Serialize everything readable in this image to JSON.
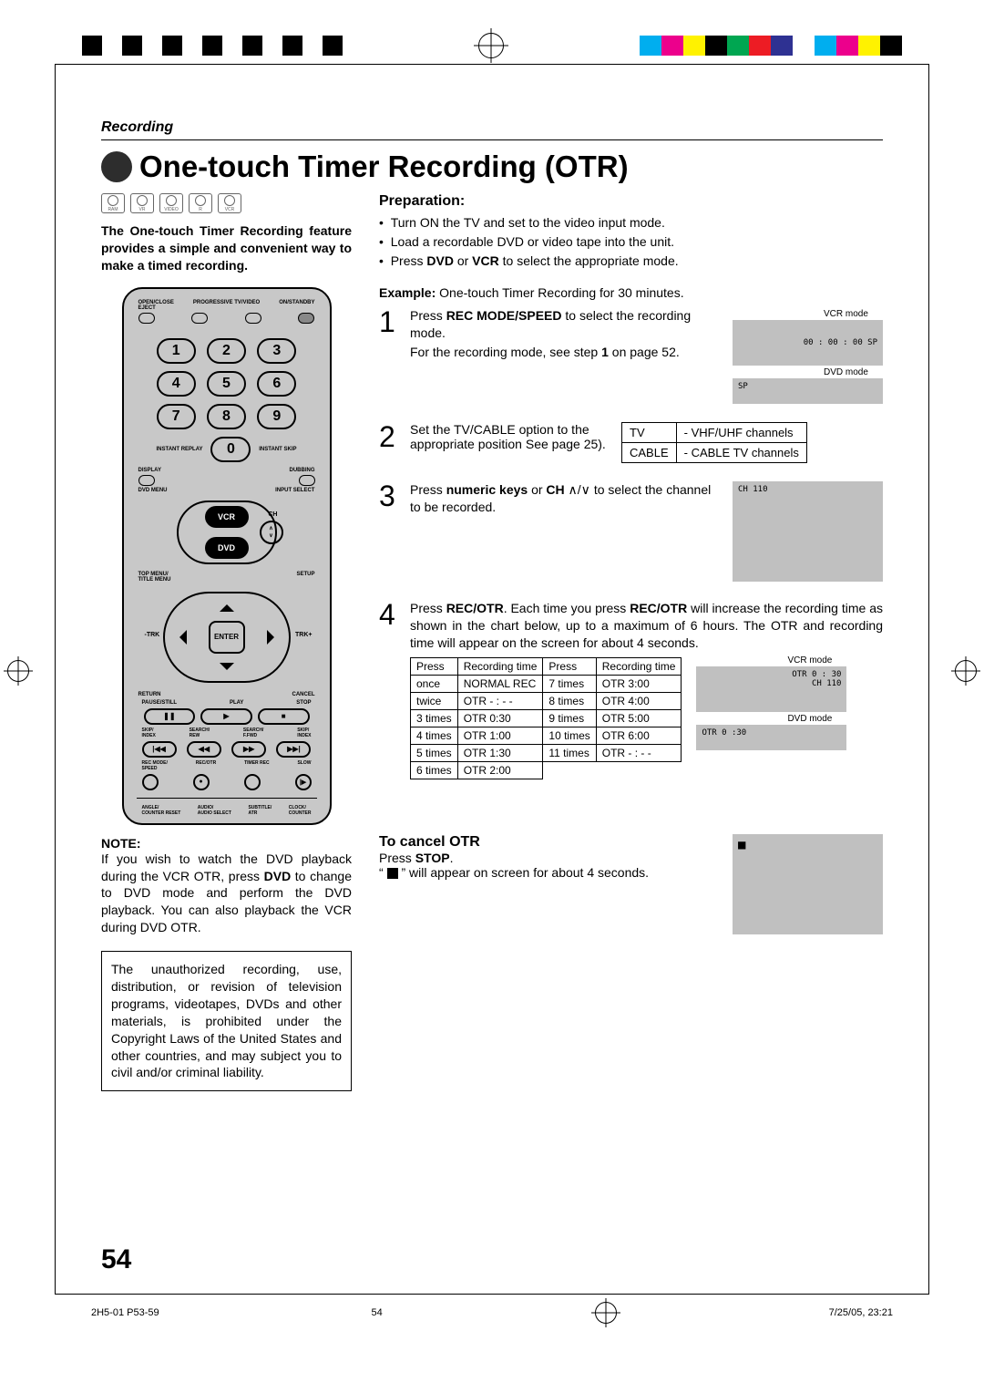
{
  "header": {
    "section_label": "Recording",
    "title": "One-touch Timer Recording (OTR)",
    "disc_icons": [
      "RAM",
      "VR",
      "VIDEO",
      "R",
      "VCR"
    ]
  },
  "intro": "The One-touch Timer Recording feature provides a simple and convenient way to make a timed recording.",
  "remote": {
    "top_left_label": "OPEN/CLOSE\nEJECT",
    "top_mid_label": "PROGRESSIVE TV/VIDEO",
    "top_right_label": "ON/STANDBY",
    "instant_replay": "INSTANT REPLAY",
    "instant_skip": "INSTANT SKIP",
    "display": "DISPLAY",
    "dubbing": "DUBBING",
    "vcr": "VCR",
    "dvd": "DVD",
    "ch": "CH",
    "input_select": "INPUT SELECT",
    "dvd_menu": "DVD MENU",
    "top_menu": "TOP MENU/\nTITLE MENU",
    "setup": "SETUP",
    "enter": "ENTER",
    "trk_minus": "-TRK",
    "trk_plus": "TRK+",
    "return": "RETURN",
    "cancel": "CANCEL",
    "pause": "PAUSE/STILL",
    "play": "PLAY",
    "stop": "STOP",
    "skip_index_l": "SKIP/\nINDEX",
    "search_rew": "SEARCH/\nREW",
    "search_ffwd": "SEARCH/\nF.FWD",
    "skip_index_r": "SKIP/\nINDEX",
    "rec_mode": "REC MODE/\nSPEED",
    "rec_otr": "REC/OTR",
    "timer_rec": "TIMER REC",
    "slow": "SLOW",
    "angle": "ANGLE/\nCOUNTER RESET",
    "audio": "AUDIO/\nAUDIO SELECT",
    "subtitle": "SUBTITLE/\nATR",
    "clock": "CLOCK/\nCOUNTER"
  },
  "note": {
    "head": "NOTE:",
    "text": "If you wish to watch the DVD playback during the VCR OTR, press DVD to change to DVD mode and perform the DVD playback. You can also playback the VCR during DVD OTR."
  },
  "copyright": "The unauthorized recording, use, distribution, or revision of television programs, videotapes, DVDs and other materials, is prohibited under the Copyright Laws of the United States and other countries, and may subject you to civil and/or criminal liability.",
  "preparation": {
    "head": "Preparation:",
    "items": [
      "Turn ON the TV and set to the video input mode.",
      "Load a recordable DVD or video tape into the unit.",
      "Press DVD or VCR to select the appropriate mode."
    ]
  },
  "example": "Example: One-touch Timer Recording for 30 minutes.",
  "steps": {
    "s1": {
      "num": "1",
      "line1a": "Press ",
      "line1b": "REC MODE/SPEED",
      "line1c": " to select the recording mode.",
      "line2a": "For the recording mode, see step ",
      "line2b": "1",
      "line2c": " on page 52.",
      "screen1_label": "VCR mode",
      "screen1_text": "00 : 00 : 00  SP",
      "screen2_label": "DVD mode",
      "screen2_text": "SP"
    },
    "s2": {
      "num": "2",
      "text": "Set the TV/CABLE option to the appropriate position See page 25).",
      "table": {
        "r1c1": "TV",
        "r1c2": "- VHF/UHF channels",
        "r2c1": "CABLE",
        "r2c2": "- CABLE TV channels"
      }
    },
    "s3": {
      "num": "3",
      "line1a": "Press ",
      "line1b": "numeric keys",
      "line1c": " or ",
      "line1d": "CH",
      "line1e": " ∧/∨ to select the channel to be recorded.",
      "screen_text": "CH  110"
    },
    "s4": {
      "num": "4",
      "line1a": "Press ",
      "line1b": "REC/OTR",
      "line1c": ". Each time you press ",
      "line1d": "REC/OTR",
      "line1e": " will increase the recording time as shown in the chart below, up to a maximum of 6 hours. The OTR and recording time will appear on the screen for about 4 seconds.",
      "table_headers": [
        "Press",
        "Recording time",
        "Press",
        "Recording time"
      ],
      "table_rows": [
        [
          "once",
          "NORMAL REC",
          "7 times",
          "OTR 3:00"
        ],
        [
          "twice",
          "OTR - : - -",
          "8 times",
          "OTR 4:00"
        ],
        [
          "3 times",
          "OTR 0:30",
          "9 times",
          "OTR 5:00"
        ],
        [
          "4 times",
          "OTR 1:00",
          "10 times",
          "OTR 6:00"
        ],
        [
          "5 times",
          "OTR 1:30",
          "11 times",
          "OTR - : - -"
        ],
        [
          "6 times",
          "OTR 2:00",
          "",
          ""
        ]
      ],
      "screen1_label": "VCR mode",
      "screen1_text1": "OTR  0 : 30",
      "screen1_text2": "CH 110",
      "screen2_label": "DVD mode",
      "screen2_text": "OTR  0 :30"
    }
  },
  "cancel": {
    "head": "To cancel OTR",
    "line1a": "Press ",
    "line1b": "STOP",
    "line1c": ".",
    "line2a": "“ ",
    "line2b": " ” will appear on screen for about 4 seconds."
  },
  "page_number": "54",
  "footer": {
    "left": "2H5-01 P53-59",
    "mid": "54",
    "right": "7/25/05, 23:21"
  },
  "colorbar_colors": [
    "#00aeef",
    "#ec008c",
    "#fff200",
    "#000000",
    "#00a651",
    "#ed1c24",
    "#2e3192",
    "#ffffff",
    "#00aeef",
    "#ec008c",
    "#fff200",
    "#000000"
  ],
  "styling": {
    "background": "#ffffff",
    "title_fontsize": 33,
    "body_fontsize": 14,
    "step_num_fontsize": 32,
    "screen_bg": "#c0c0c0",
    "remote_bg": "#c8c8c8"
  }
}
